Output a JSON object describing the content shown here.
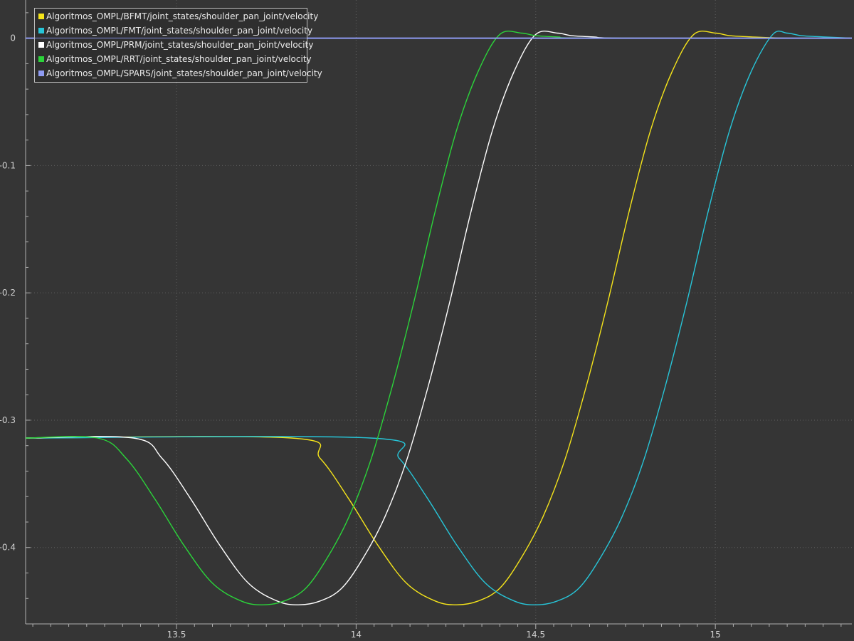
{
  "chart_data": {
    "type": "line",
    "title": "",
    "xlabel": "",
    "ylabel": "",
    "xlim": [
      13.08,
      15.38
    ],
    "ylim": [
      -0.46,
      0.03
    ],
    "x_ticks": [
      13.5,
      14,
      14.5,
      15
    ],
    "x_tick_labels": [
      "13.5",
      "14",
      "14.5",
      "15"
    ],
    "y_ticks": [
      0,
      -0.1,
      -0.2,
      -0.3,
      -0.4
    ],
    "y_tick_labels": [
      "0",
      "-0.1",
      "-0.2",
      "-0.3",
      "-0.4"
    ],
    "grid": true,
    "legend_position": "top-left",
    "series": [
      {
        "name": "Algoritmos_OMPL/BFMT/joint_states/shoulder_pan_joint/velocity",
        "color": "#f5e41a",
        "x": [
          13.08,
          13.82,
          13.9,
          13.98,
          14.06,
          14.14,
          14.22,
          14.28,
          14.34,
          14.4,
          14.46,
          14.52,
          14.58,
          14.64,
          14.7,
          14.76,
          14.82,
          14.88,
          14.94,
          15.0,
          15.04,
          15.1,
          15.2,
          15.38
        ],
        "y": [
          -0.314,
          -0.314,
          -0.33,
          -0.362,
          -0.398,
          -0.428,
          -0.442,
          -0.445,
          -0.442,
          -0.432,
          -0.408,
          -0.376,
          -0.332,
          -0.274,
          -0.208,
          -0.136,
          -0.072,
          -0.026,
          0.003,
          0.004,
          0.002,
          0.001,
          0.0,
          0.0
        ]
      },
      {
        "name": "Algoritmos_OMPL/FMT/joint_states/shoulder_pan_joint/velocity",
        "color": "#27c5d8",
        "x": [
          13.08,
          14.04,
          14.12,
          14.2,
          14.28,
          14.36,
          14.44,
          14.5,
          14.56,
          14.62,
          14.68,
          14.74,
          14.8,
          14.86,
          14.92,
          14.98,
          15.04,
          15.1,
          15.16,
          15.2,
          15.24,
          15.3,
          15.38
        ],
        "y": [
          -0.314,
          -0.314,
          -0.33,
          -0.362,
          -0.398,
          -0.428,
          -0.442,
          -0.445,
          -0.442,
          -0.432,
          -0.408,
          -0.376,
          -0.332,
          -0.274,
          -0.208,
          -0.136,
          -0.072,
          -0.026,
          0.003,
          0.004,
          0.002,
          0.001,
          0.0
        ]
      },
      {
        "name": "Algoritmos_OMPL/PRM/joint_states/shoulder_pan_joint/velocity",
        "color": "#ffffff",
        "x": [
          13.08,
          13.38,
          13.46,
          13.54,
          13.62,
          13.7,
          13.78,
          13.84,
          13.9,
          13.96,
          14.02,
          14.08,
          14.14,
          14.2,
          14.26,
          14.32,
          14.38,
          14.44,
          14.5,
          14.56,
          14.6,
          14.66,
          14.76,
          15.38
        ],
        "y": [
          -0.314,
          -0.314,
          -0.33,
          -0.362,
          -0.398,
          -0.428,
          -0.442,
          -0.445,
          -0.442,
          -0.432,
          -0.408,
          -0.376,
          -0.332,
          -0.274,
          -0.208,
          -0.136,
          -0.072,
          -0.026,
          0.003,
          0.004,
          0.002,
          0.001,
          0.0,
          0.0
        ]
      },
      {
        "name": "Algoritmos_OMPL/RRT/joint_states/shoulder_pan_joint/velocity",
        "color": "#2bd43a",
        "x": [
          13.08,
          13.28,
          13.36,
          13.44,
          13.52,
          13.6,
          13.68,
          13.74,
          13.8,
          13.86,
          13.92,
          13.98,
          14.04,
          14.1,
          14.16,
          14.22,
          14.28,
          14.34,
          14.4,
          14.46,
          14.5,
          14.56,
          14.66,
          15.38
        ],
        "y": [
          -0.314,
          -0.314,
          -0.33,
          -0.362,
          -0.398,
          -0.428,
          -0.442,
          -0.445,
          -0.442,
          -0.432,
          -0.408,
          -0.376,
          -0.332,
          -0.274,
          -0.208,
          -0.136,
          -0.072,
          -0.026,
          0.003,
          0.004,
          0.002,
          0.001,
          0.0,
          0.0
        ]
      },
      {
        "name": "Algoritmos_OMPL/SPARS/joint_states/shoulder_pan_joint/velocity",
        "color": "#8f9bf2",
        "x": [
          13.08,
          15.38
        ],
        "y": [
          0.0,
          0.0
        ]
      }
    ]
  }
}
